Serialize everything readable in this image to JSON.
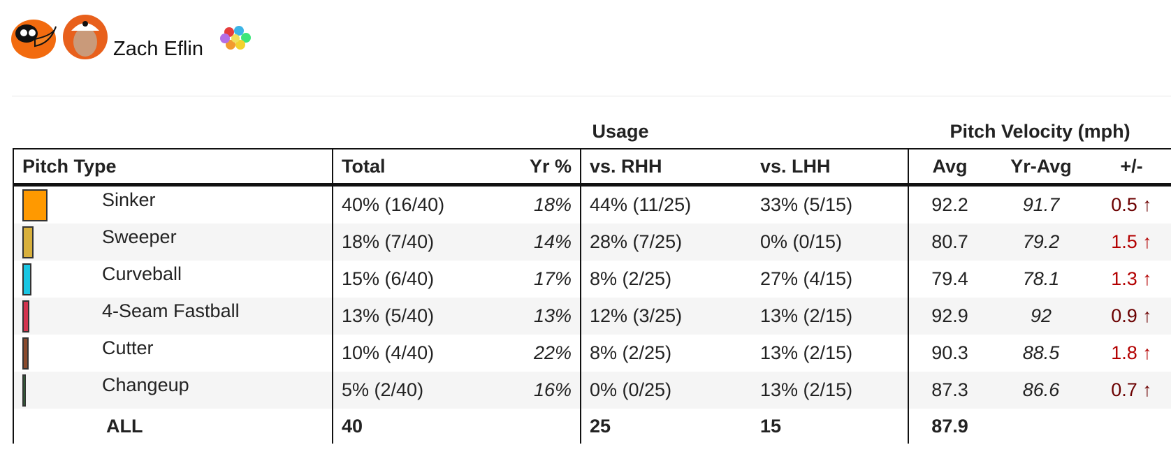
{
  "header": {
    "name": "Zach Eflin"
  },
  "table": {
    "groups": [
      "Usage",
      "Pitch Velocity (mph)"
    ],
    "columns": [
      "Pitch Type",
      "Total",
      "Yr %",
      "vs. RHH",
      "vs. LHH",
      "Avg",
      "Yr-Avg",
      "+/-"
    ],
    "rows": [
      {
        "pitch": "Sinker",
        "color": "#ff9900",
        "cells": [
          "40% (16/40)",
          "18%",
          "44% (11/25)",
          "33% (5/15)",
          92.2,
          91.7,
          "0.5 ↑"
        ]
      },
      {
        "pitch": "Sweeper",
        "color": "#d8b03c",
        "cells": [
          "18% (7/40)",
          "14%",
          "28% (7/25)",
          "0% (0/15)",
          80.7,
          79.2,
          "1.5 ↑"
        ]
      },
      {
        "pitch": "Curveball",
        "color": "#19c6e3",
        "cells": [
          "15% (6/40)",
          "17%",
          "8% (2/25)",
          "27% (4/15)",
          79.4,
          78.1,
          "1.3 ↑"
        ]
      },
      {
        "pitch": "4-Seam Fastball",
        "color": "#d3344f",
        "cells": [
          "13% (5/40)",
          "13%",
          "12% (3/25)",
          "13% (2/15)",
          92.9,
          92,
          "0.9 ↑"
        ]
      },
      {
        "pitch": "Cutter",
        "color": "#8a4a2c",
        "cells": [
          "10% (4/40)",
          "22%",
          "8% (2/25)",
          "13% (2/15)",
          90.3,
          88.5,
          "1.8 ↑"
        ]
      },
      {
        "pitch": "Changeup",
        "color": "#2f8a3c",
        "cells": [
          "5% (2/40)",
          "16%",
          "0% (0/25)",
          "13% (2/15)",
          87.3,
          86.6,
          "0.7 ↑"
        ]
      }
    ],
    "total": {
      "label": "ALL",
      "total": 40,
      "rhh": 25,
      "lhh": 15,
      "avg": 87.9
    }
  }
}
